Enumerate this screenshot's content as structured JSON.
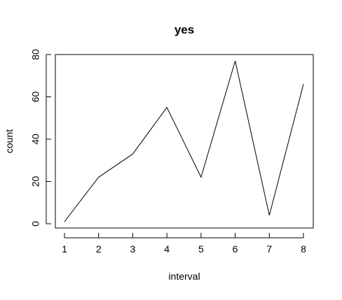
{
  "chart_data": {
    "type": "line",
    "title": "yes",
    "xlabel": "interval",
    "ylabel": "count",
    "x": [
      1,
      2,
      3,
      4,
      5,
      6,
      7,
      8
    ],
    "y": [
      1,
      22,
      33,
      55,
      22,
      77,
      4,
      66
    ],
    "xlim": [
      1,
      8
    ],
    "ylim": [
      0,
      80
    ],
    "x_ticks": [
      1,
      2,
      3,
      4,
      5,
      6,
      7,
      8
    ],
    "y_ticks": [
      0,
      20,
      40,
      60,
      80
    ],
    "x_tick_labels": [
      "1",
      "2",
      "3",
      "4",
      "5",
      "6",
      "7",
      "8"
    ],
    "y_tick_labels": [
      "0",
      "20",
      "40",
      "60",
      "80"
    ],
    "grid": false,
    "legend": "none",
    "line_color": "#000000"
  }
}
